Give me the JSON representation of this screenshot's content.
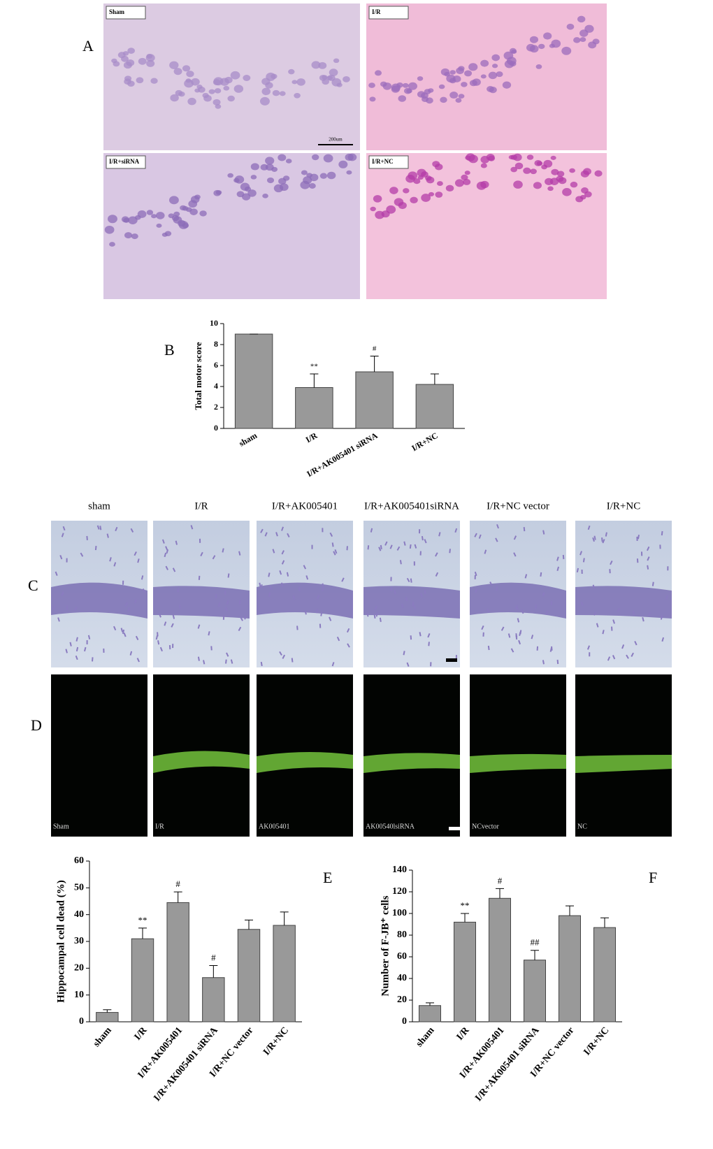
{
  "panels": {
    "A": {
      "label": "A",
      "images": [
        "Sham",
        "I/R",
        "I/R+siRNA",
        "I/R+NC"
      ],
      "scale": "200um"
    },
    "C": {
      "label": "C",
      "headings": [
        "sham",
        "I/R",
        "I/R+AK005401",
        "I/R+AK005401siRNA",
        "I/R+NC vector",
        "I/R+NC"
      ]
    },
    "D": {
      "label": "D",
      "images": [
        "Sham",
        "I/R",
        "AK005401",
        "AK00540lsiRNA",
        "NCvector",
        "NC"
      ]
    }
  },
  "chart_data": [
    {
      "type": "bar",
      "panel": "B",
      "ylabel": "Total motor score",
      "categories": [
        "sham",
        "I/R",
        "I/R+AK005401 siRNA",
        "I/R+NC"
      ],
      "values": [
        9,
        3.9,
        5.4,
        4.2
      ],
      "errors": [
        0,
        1.3,
        1.5,
        1.0
      ],
      "annotations": [
        null,
        "**",
        "#",
        null
      ],
      "color": "#999999",
      "ylim": [
        0,
        10
      ],
      "yticks": [
        0,
        2,
        4,
        6,
        8,
        10
      ]
    },
    {
      "type": "bar",
      "panel": "E",
      "ylabel": "Hippocampal cell dead (%)",
      "categories": [
        "sham",
        "I/R",
        "I/R+AK005401",
        "I/R+AK005401 siRNA",
        "I/R+NC vector",
        "I/R+NC"
      ],
      "values": [
        3.5,
        31,
        44.5,
        16.5,
        34.5,
        36
      ],
      "errors": [
        1,
        4,
        4,
        4.5,
        3.5,
        5
      ],
      "annotations": [
        null,
        "**",
        "#",
        "#",
        null,
        null
      ],
      "color": "#999999",
      "ylim": [
        0,
        60
      ],
      "yticks": [
        0,
        10,
        20,
        30,
        40,
        50,
        60
      ]
    },
    {
      "type": "bar",
      "panel": "F",
      "ylabel": "Number of F-JB⁺ cells",
      "categories": [
        "sham",
        "I/R",
        "I/R+AK005401",
        "I/R+AK005401 siRNA",
        "I/R+NC vector",
        "I/R+NC"
      ],
      "values": [
        15,
        92,
        114,
        57,
        98,
        87
      ],
      "errors": [
        2.5,
        8,
        9,
        9,
        9,
        9
      ],
      "annotations": [
        null,
        "**",
        "#",
        "##",
        null,
        null
      ],
      "color": "#999999",
      "ylim": [
        0,
        140
      ],
      "yticks": [
        0,
        20,
        40,
        60,
        80,
        100,
        120,
        140
      ]
    }
  ]
}
